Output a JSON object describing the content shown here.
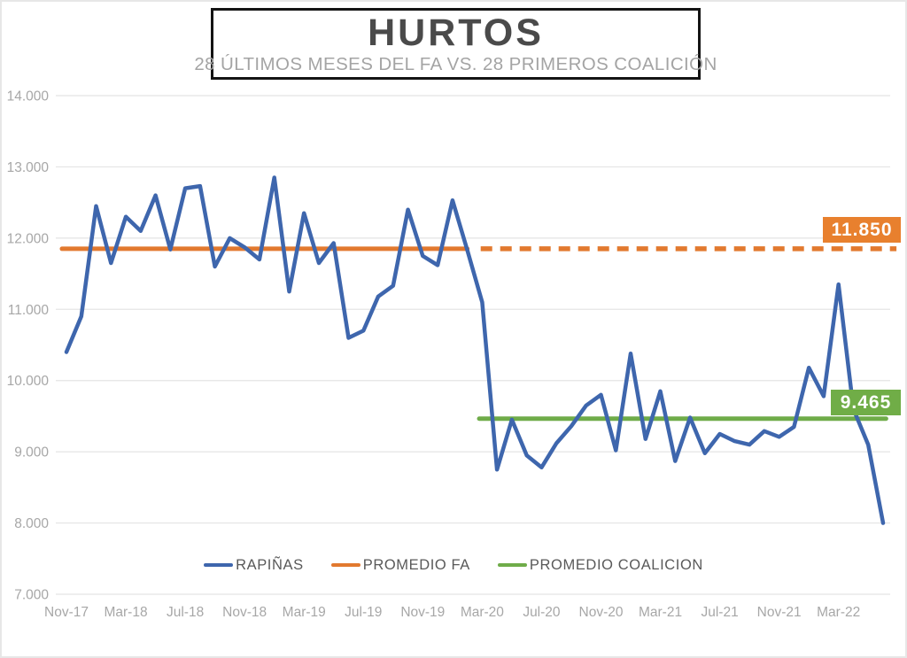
{
  "header": {
    "title": "HURTOS",
    "subtitle": "28 ÚLTIMOS MESES DEL FA VS. 28 PRIMEROS COALICIÓN"
  },
  "annotations": {
    "promedio_fa_value": "11.850",
    "promedio_coalicion_value": "9.465"
  },
  "legend": {
    "items": [
      {
        "label": "RAPIÑAS",
        "color": "#3e66ad"
      },
      {
        "label": "PROMEDIO FA",
        "color": "#e2792f"
      },
      {
        "label": "PROMEDIO COALICION",
        "color": "#6fac49"
      }
    ]
  },
  "colors": {
    "rapinas_line": "#3e66ad",
    "promedio_fa_line": "#e2792f",
    "promedio_coalicion_line": "#6fac49",
    "gridline": "#e4e4e4",
    "axis_text": "#a7a7a7",
    "fa_label_bg": "#e8802e",
    "coalicion_label_bg": "#70ad47"
  },
  "chart_data": {
    "type": "line",
    "title": "HURTOS",
    "subtitle": "28 ÚLTIMOS MESES DEL FA VS. 28 PRIMEROS COALICIÓN",
    "grid": true,
    "legend_position": "bottom",
    "ylim": [
      7000,
      14000
    ],
    "y_ticks": [
      {
        "label": "7.000",
        "value": 7000
      },
      {
        "label": "8.000",
        "value": 8000
      },
      {
        "label": "9.000",
        "value": 9000
      },
      {
        "label": "10.000",
        "value": 10000
      },
      {
        "label": "11.000",
        "value": 11000
      },
      {
        "label": "12.000",
        "value": 12000
      },
      {
        "label": "13.000",
        "value": 13000
      },
      {
        "label": "14.000",
        "value": 14000
      }
    ],
    "x": [
      "Nov-17",
      "Dec-17",
      "Jan-18",
      "Feb-18",
      "Mar-18",
      "Apr-18",
      "May-18",
      "Jun-18",
      "Jul-18",
      "Aug-18",
      "Sep-18",
      "Oct-18",
      "Nov-18",
      "Dec-18",
      "Jan-19",
      "Feb-19",
      "Mar-19",
      "Apr-19",
      "May-19",
      "Jun-19",
      "Jul-19",
      "Aug-19",
      "Sep-19",
      "Oct-19",
      "Nov-19",
      "Dec-19",
      "Jan-20",
      "Feb-20",
      "Mar-20",
      "Apr-20",
      "May-20",
      "Jun-20",
      "Jul-20",
      "Aug-20",
      "Sep-20",
      "Oct-20",
      "Nov-20",
      "Dec-20",
      "Jan-21",
      "Feb-21",
      "Mar-21",
      "Apr-21",
      "May-21",
      "Jun-21",
      "Jul-21",
      "Aug-21",
      "Sep-21",
      "Oct-21",
      "Nov-21",
      "Dec-21",
      "Jan-22",
      "Feb-22",
      "Mar-22",
      "Apr-22",
      "May-22",
      "Jun-22"
    ],
    "x_ticks": [
      {
        "label": "Nov-17",
        "index": 0
      },
      {
        "label": "Mar-18",
        "index": 4
      },
      {
        "label": "Jul-18",
        "index": 8
      },
      {
        "label": "Nov-18",
        "index": 12
      },
      {
        "label": "Mar-19",
        "index": 16
      },
      {
        "label": "Jul-19",
        "index": 20
      },
      {
        "label": "Nov-19",
        "index": 24
      },
      {
        "label": "Mar-20",
        "index": 28
      },
      {
        "label": "Jul-20",
        "index": 32
      },
      {
        "label": "Nov-20",
        "index": 36
      },
      {
        "label": "Mar-21",
        "index": 40
      },
      {
        "label": "Jul-21",
        "index": 44
      },
      {
        "label": "Nov-21",
        "index": 48
      },
      {
        "label": "Mar-22",
        "index": 52
      }
    ],
    "series": [
      {
        "name": "RAPIÑAS",
        "kind": "data",
        "color": "#3e66ad",
        "values": [
          10400,
          10900,
          12450,
          11650,
          12300,
          12100,
          12600,
          11840,
          12700,
          12730,
          11600,
          12000,
          11870,
          11700,
          12850,
          11250,
          12350,
          11650,
          11930,
          10600,
          10700,
          11180,
          11330,
          12400,
          11750,
          11620,
          12530,
          11830,
          11100,
          8750,
          9450,
          8950,
          8780,
          9120,
          9360,
          9650,
          9800,
          9020,
          10380,
          9180,
          9850,
          8870,
          9480,
          8980,
          9250,
          9150,
          9100,
          9290,
          9210,
          9350,
          10180,
          9780,
          11350,
          9600,
          9100,
          8000
        ]
      },
      {
        "name": "PROMEDIO FA",
        "kind": "average",
        "color": "#e2792f",
        "value": 11850,
        "label": "11.850",
        "solid_index_range": [
          -0.3,
          27.0
        ],
        "dashed_index_range": [
          27.9,
          55.9
        ]
      },
      {
        "name": "PROMEDIO COALICION",
        "kind": "average",
        "color": "#6fac49",
        "value": 9465,
        "label": "9.465",
        "solid_index_range": [
          27.8,
          55.2
        ]
      }
    ]
  }
}
